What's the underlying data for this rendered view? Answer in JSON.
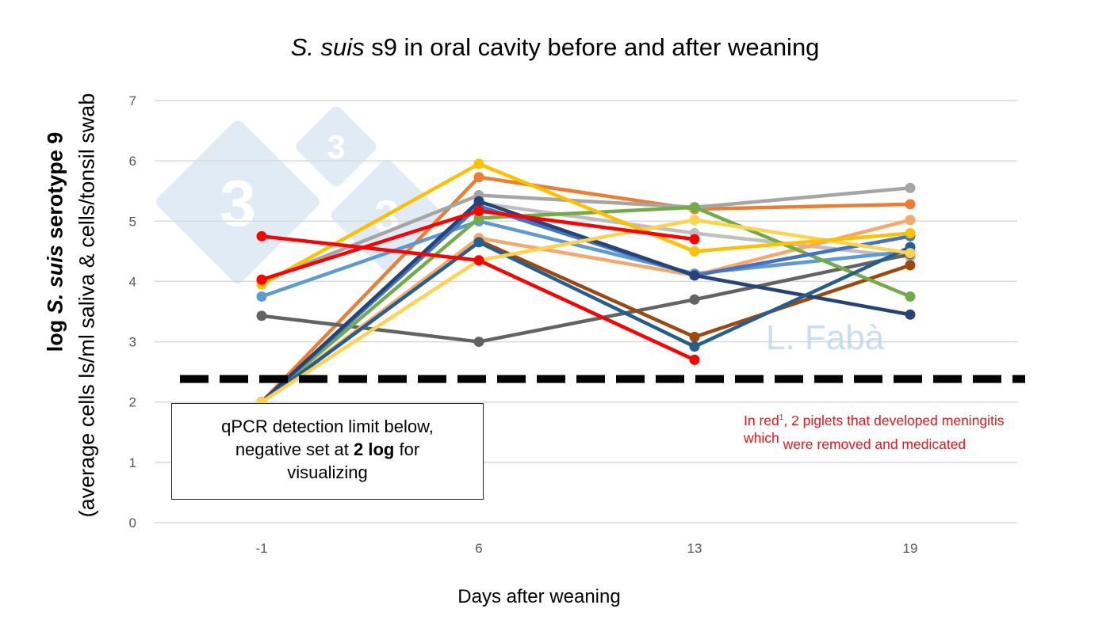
{
  "chart_data": {
    "type": "line",
    "title_italic": "S. suis",
    "title_rest": " s9 in oral cavity before and after weaning",
    "ylabel_bold_prefix": "log ",
    "ylabel_bold_italic": "S. suis",
    "ylabel_bold_suffix": " serotype 9",
    "ylabel_line2": "(average cells ls/ml saliva & cells/tonsil swab",
    "xlabel": "Days after weaning",
    "categories": [
      "-1",
      "6",
      "13",
      "19"
    ],
    "ylim": [
      0,
      7
    ],
    "yticks": [
      "0",
      "1",
      "2",
      "3",
      "4",
      "5",
      "6",
      "7"
    ],
    "grid": true,
    "reference_line": {
      "value": 2.5,
      "style": "dashed",
      "color": "#000000"
    },
    "series": [
      {
        "color": "#ED7D31",
        "values": [
          2,
          5.73,
          5.2,
          5.28
        ]
      },
      {
        "color": "#A5A5A5",
        "values": [
          4.0,
          5.43,
          5.23,
          5.55
        ]
      },
      {
        "color": "#BFBFBF",
        "values": [
          null,
          5.3,
          4.8,
          4.4
        ]
      },
      {
        "color": "#5B9BD5",
        "values": [
          3.75,
          5.0,
          4.13,
          4.5
        ]
      },
      {
        "color": "#636363",
        "values": [
          3.43,
          3.0,
          3.7,
          4.45
        ]
      },
      {
        "color": "#9E480E",
        "values": [
          2,
          4.68,
          3.08,
          4.27
        ]
      },
      {
        "color": "#F4A86A",
        "values": [
          2,
          4.72,
          4.1,
          5.02
        ]
      },
      {
        "color": "#70AD47",
        "values": [
          2,
          5.05,
          5.23,
          3.75
        ]
      },
      {
        "color": "#4472C4",
        "values": [
          2,
          5.25,
          4.1,
          4.75
        ]
      },
      {
        "color": "#264478",
        "values": [
          2,
          5.33,
          4.1,
          3.45
        ]
      },
      {
        "color": "#255E91",
        "values": [
          2,
          4.65,
          2.92,
          4.57
        ]
      },
      {
        "color": "#FFD34D",
        "values": [
          2,
          4.35,
          5.02,
          4.47
        ]
      },
      {
        "color": "#FFC000",
        "values": [
          3.95,
          5.95,
          4.5,
          4.8
        ]
      },
      {
        "color": "#FF0000",
        "values": [
          4.75,
          4.35,
          2.7,
          null
        ]
      },
      {
        "color": "#FF0000",
        "values": [
          4.03,
          5.17,
          4.7,
          null
        ]
      }
    ]
  },
  "annotation_box": {
    "line1": "qPCR detection limit below,",
    "line2_prefix": "negative set at ",
    "line2_bold": "2 log",
    "line2_suffix": " for",
    "line3": "visualizing"
  },
  "red_note": {
    "part1": "In red",
    "sup": "1",
    "part2": ", 2 piglets that developed meningitis",
    "part3": "which",
    "part4": " were removed and medicated",
    "color": "#E8141C"
  },
  "watermark_author": "L. Fabà",
  "watermark_logo": "333"
}
